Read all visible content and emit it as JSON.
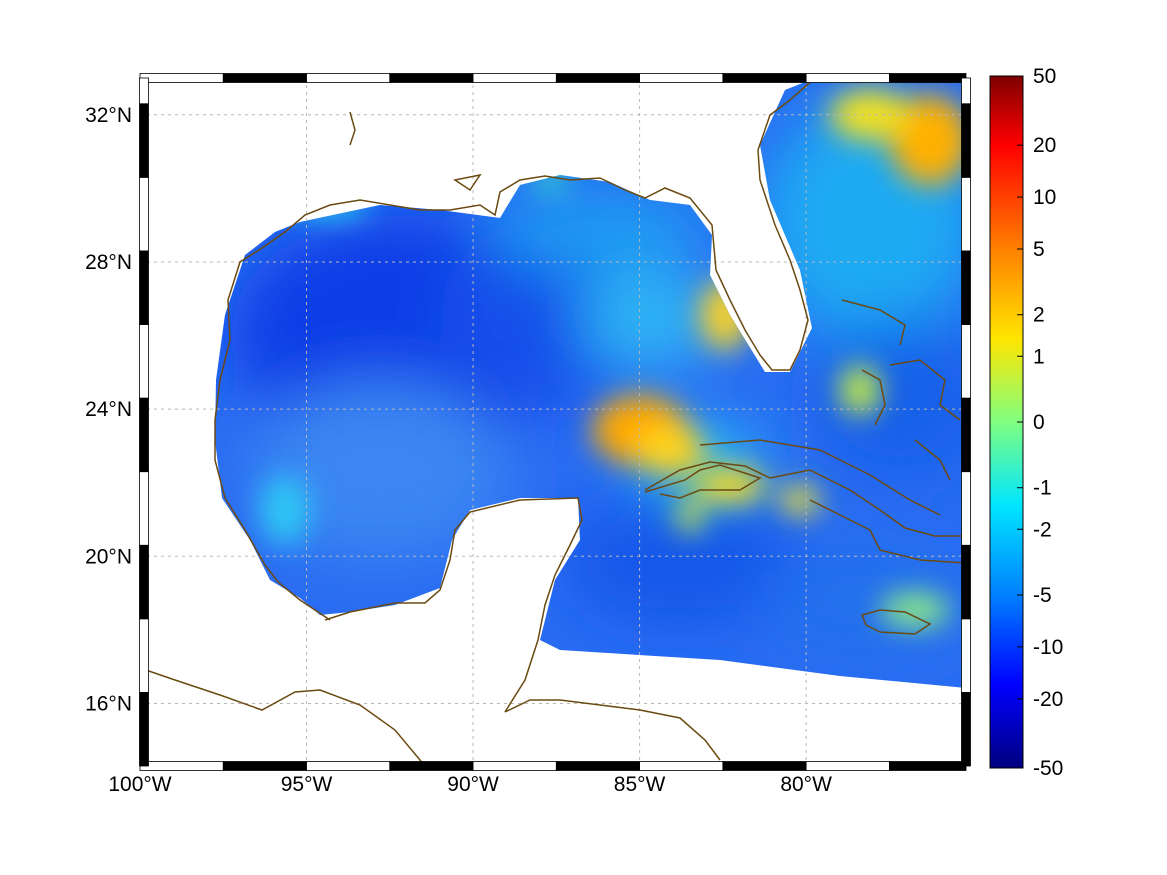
{
  "map": {
    "lon_range": [
      -100,
      -75.2
    ],
    "lat_range": [
      14.3,
      33
    ],
    "lon_ticks": [
      {
        "value": -100,
        "label": "100°W"
      },
      {
        "value": -95,
        "label": "95°W"
      },
      {
        "value": -90,
        "label": "90°W"
      },
      {
        "value": -85,
        "label": "85°W"
      },
      {
        "value": -80,
        "label": "80°W"
      }
    ],
    "lat_ticks": [
      {
        "value": 32,
        "label": "32°N"
      },
      {
        "value": 28,
        "label": "28°N"
      },
      {
        "value": 24,
        "label": "24°N"
      },
      {
        "value": 20,
        "label": "20°N"
      },
      {
        "value": 16,
        "label": "16°N"
      }
    ],
    "grid": true,
    "frame_style": "alternating black/white segments",
    "colormap": "jet",
    "coastline_color": "#6b4a12",
    "background_color": "#ffffff"
  },
  "colorbar": {
    "labels": [
      "50",
      "20",
      "10",
      "5",
      "2",
      "1",
      "0",
      "-1",
      "-2",
      "-5",
      "-10",
      "-20",
      "-50"
    ],
    "min_label": "-50",
    "max_label": "50"
  }
}
